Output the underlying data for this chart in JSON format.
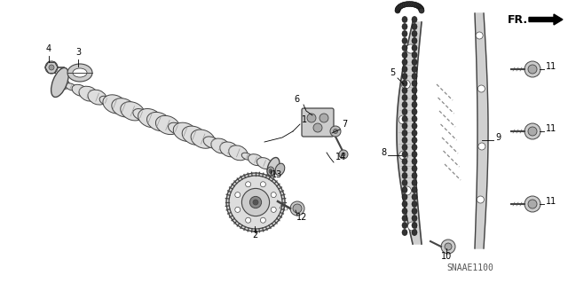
{
  "bg_color": "#ffffff",
  "line_color": "#444444",
  "dark_color": "#222222",
  "light_gray": "#cccccc",
  "mid_gray": "#888888",
  "watermark": "SNAAE1100",
  "fr_label": "FR."
}
